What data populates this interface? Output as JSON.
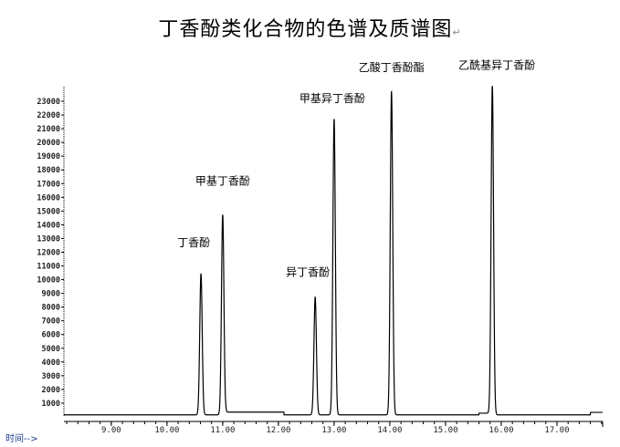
{
  "title": "丁香酚类化合物的色谱及质谱图",
  "title_mark": "↵",
  "chart_data": {
    "type": "line",
    "title": "丁香酚类化合物的色谱及质谱图",
    "xlabel": "时间-->",
    "ylabel": "",
    "xlim": [
      8.15,
      17.82
    ],
    "ylim": [
      0,
      23500
    ],
    "x_ticks": [
      "9.00",
      "10.00",
      "11.00",
      "12.00",
      "13.00",
      "14.00",
      "15.00",
      "16.00",
      "17.00"
    ],
    "y_ticks": [
      "1000",
      "2000",
      "3000",
      "4000",
      "5000",
      "6000",
      "7000",
      "8000",
      "9000",
      "10000",
      "11000",
      "12000",
      "13000",
      "14000",
      "15000",
      "16000",
      "17000",
      "18000",
      "19000",
      "20000",
      "21000",
      "22000",
      "23000"
    ],
    "grid": false,
    "line_color": "#000000",
    "peaks": [
      {
        "name": "丁香酚",
        "rt": 10.61,
        "abundance": 10300
      },
      {
        "name": "甲基丁香酚",
        "rt": 11.0,
        "abundance": 14600
      },
      {
        "name": "异丁香酚",
        "rt": 12.66,
        "abundance": 8600
      },
      {
        "name": "甲基异丁香酚",
        "rt": 13.0,
        "abundance": 21600
      },
      {
        "name": "乙酸丁香酚酯",
        "rt": 14.03,
        "abundance": 23600
      },
      {
        "name": "乙酰基异丁香酚",
        "rt": 15.84,
        "abundance": 23900
      }
    ]
  }
}
